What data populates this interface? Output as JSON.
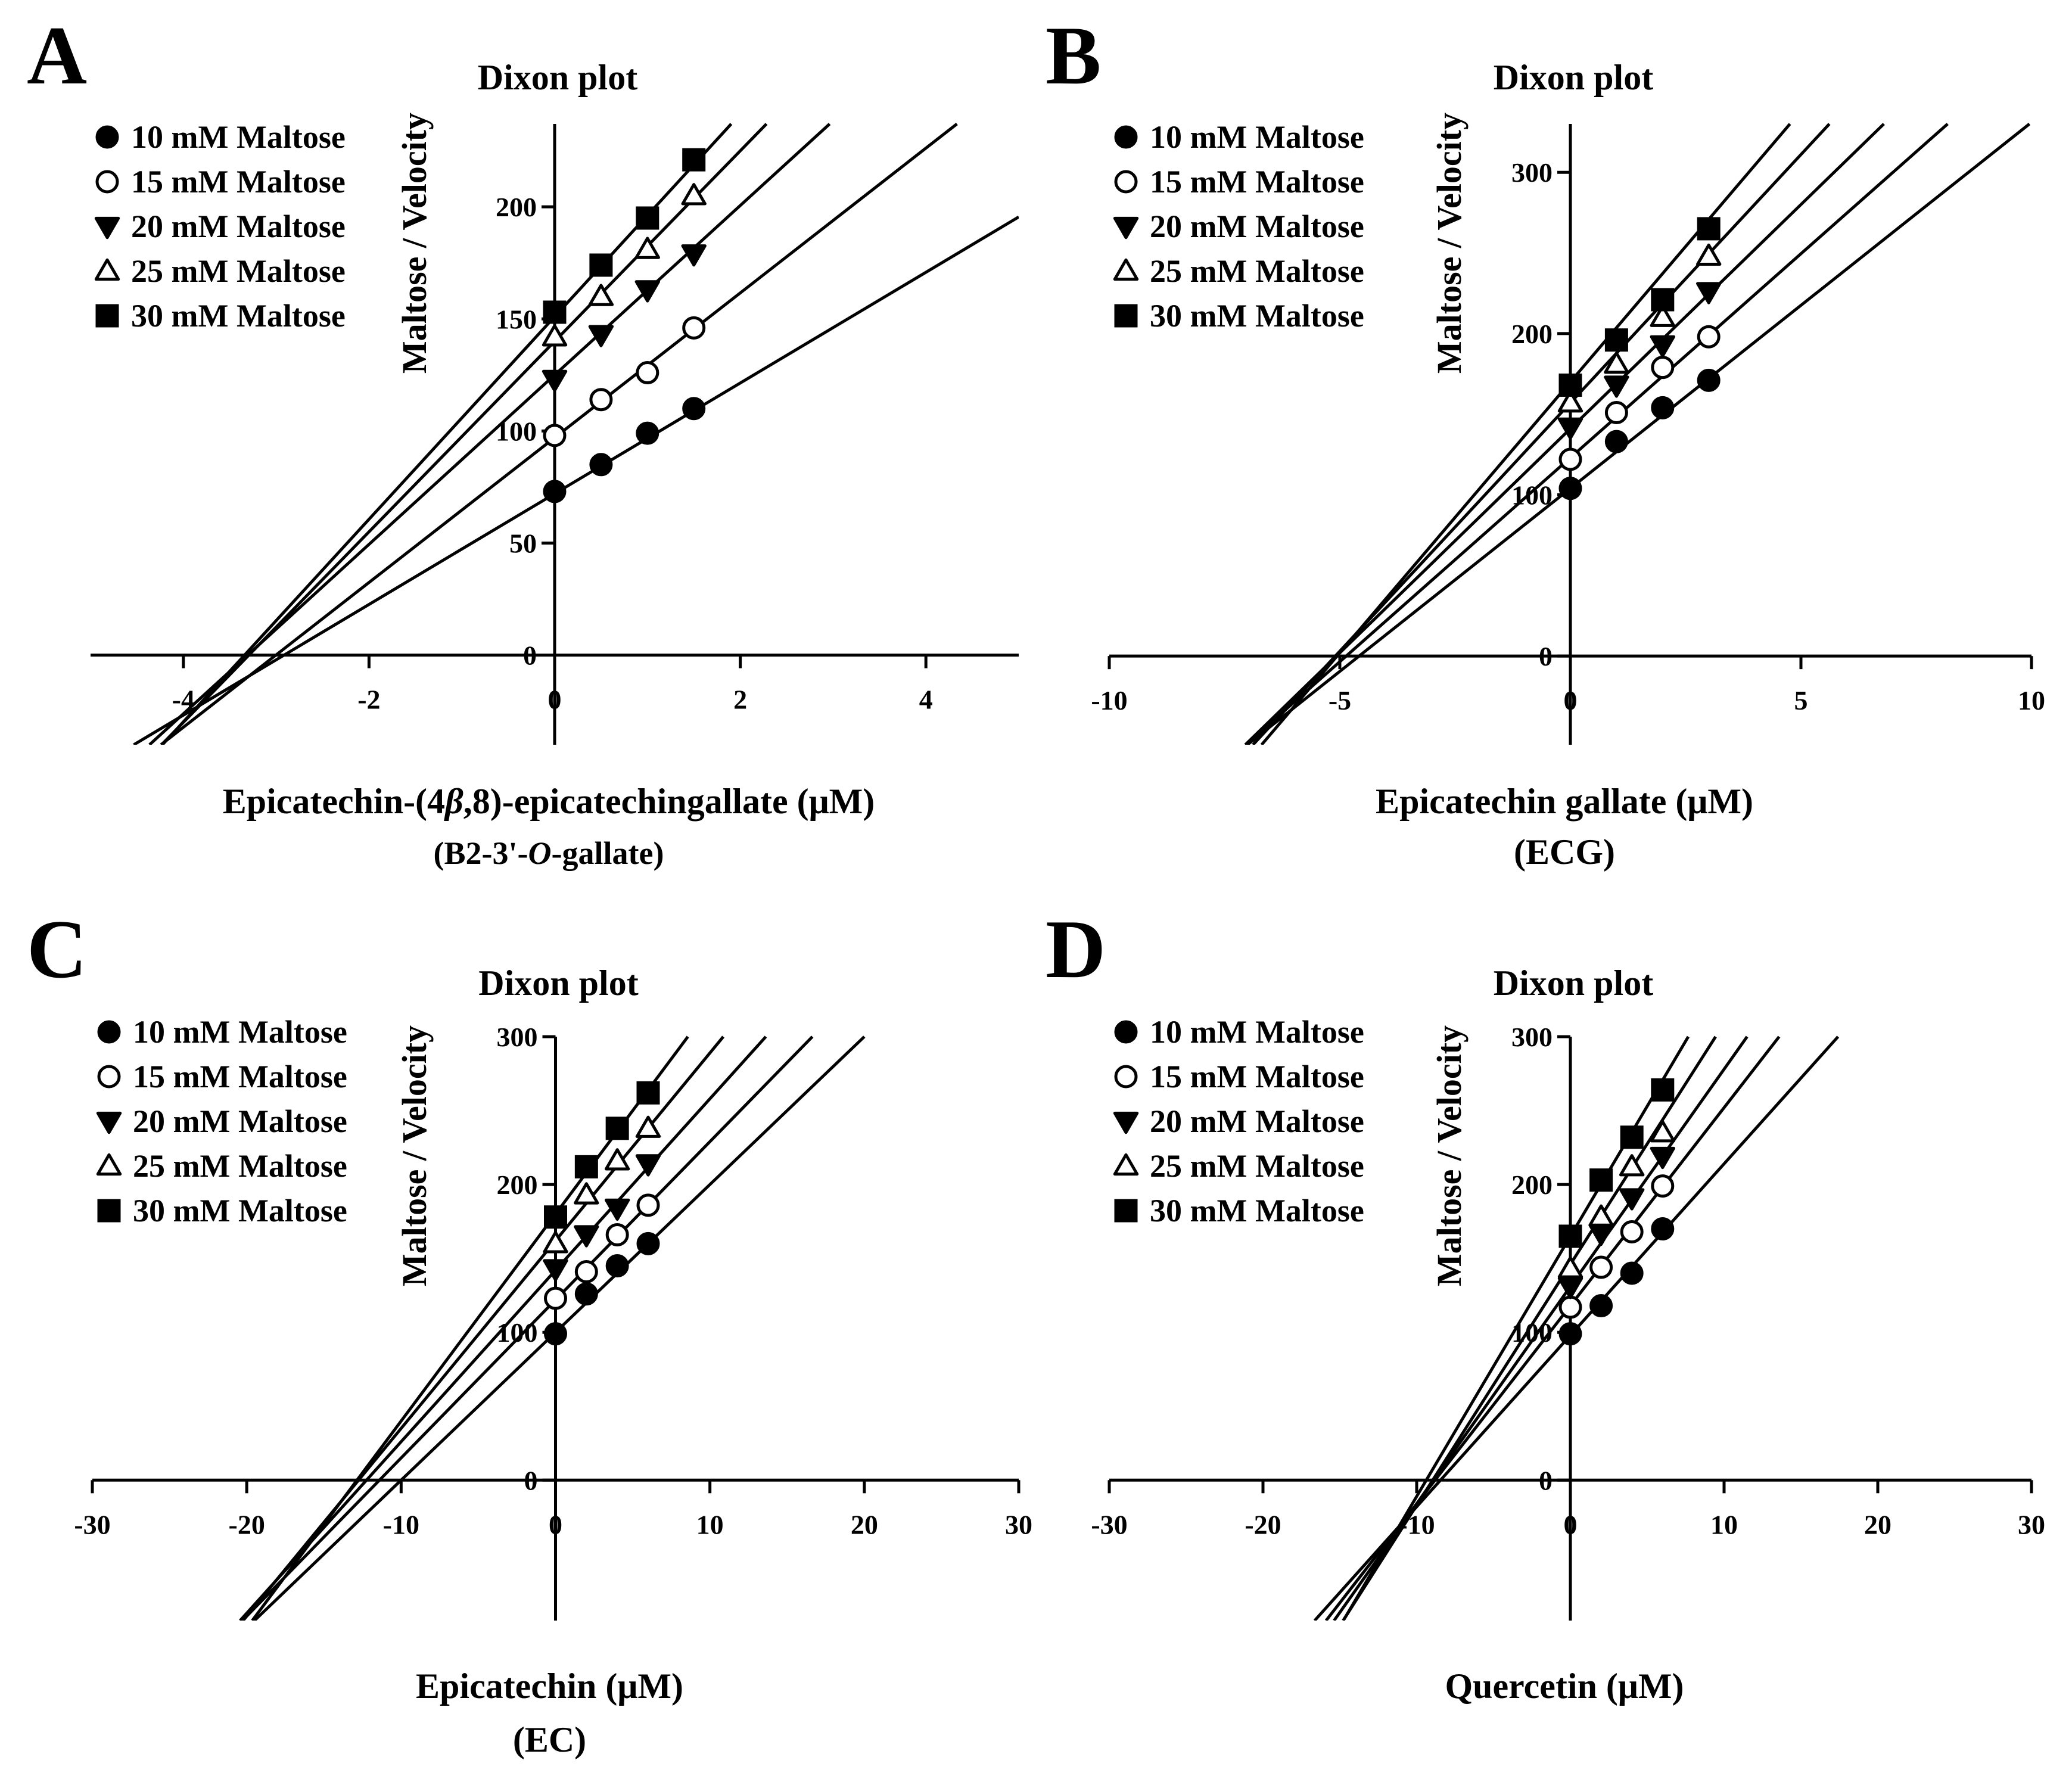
{
  "colors": {
    "line": "#000000",
    "background": "#ffffff"
  },
  "chart_data": [
    {
      "type": "line",
      "panel_label": "A",
      "title": "Dixon plot",
      "xlabel": "Epicatechin-(4β,8)-epicatechingallate (μM)",
      "xlabel_parts": [
        "Epicatechin-(4",
        "β",
        ",8)-epicatechingallate (μM)"
      ],
      "xsublabel": "(B2-3'-O-gallate)",
      "xsublabel_parts": [
        "(B2-3'-",
        "O",
        "-gallate)"
      ],
      "ylabel": "Maltose / Velocity",
      "xlim": [
        -5,
        5
      ],
      "ylim": [
        -40,
        237
      ],
      "xticks": [
        -4,
        -2,
        0,
        2,
        4
      ],
      "xtick_labels": [
        "-4",
        "-2",
        "0",
        "2",
        "4"
      ],
      "yticks": [
        0,
        50,
        100,
        150,
        200
      ],
      "ytick_labels": [
        "0",
        "50",
        "100",
        "150",
        "200"
      ],
      "legend_labels": [
        "10 mM Maltose",
        "15 mM Maltose",
        "20 mM Maltose",
        "25 mM Maltose",
        "30 mM Maltose"
      ],
      "series": [
        {
          "name": "10 mM Maltose",
          "marker": "circle-filled",
          "x": [
            0,
            0.5,
            1,
            1.5
          ],
          "y": [
            73,
            85,
            99,
            110
          ],
          "intercept": 72,
          "slope": 24.7
        },
        {
          "name": "15 mM Maltose",
          "marker": "circle-open",
          "x": [
            0,
            0.5,
            1,
            1.5
          ],
          "y": [
            98,
            114,
            126,
            146
          ],
          "intercept": 97,
          "slope": 32.3
        },
        {
          "name": "20 mM Maltose",
          "marker": "triangle-down-filled",
          "x": [
            0,
            0.5,
            1,
            1.5
          ],
          "y": [
            123,
            143,
            163,
            179
          ],
          "intercept": 125,
          "slope": 37.8
        },
        {
          "name": "25 mM Maltose",
          "marker": "triangle-up-open",
          "x": [
            0,
            0.5,
            1,
            1.5
          ],
          "y": [
            142,
            160,
            181,
            205
          ],
          "intercept": 140,
          "slope": 42.5
        },
        {
          "name": "30 mM Maltose",
          "marker": "square-filled",
          "x": [
            0,
            0.5,
            1,
            1.5
          ],
          "y": [
            153,
            174,
            195,
            221
          ],
          "intercept": 151,
          "slope": 45.2
        }
      ]
    },
    {
      "type": "line",
      "panel_label": "B",
      "title": "Dixon plot",
      "xlabel": "Epicatechin gallate (μM)",
      "xsublabel": "(ECG)",
      "ylabel": "Maltose / Velocity",
      "xlim": [
        -10,
        10
      ],
      "ylim": [
        -55,
        330
      ],
      "xticks": [
        -10,
        -5,
        0,
        5,
        10
      ],
      "xtick_labels": [
        "-10",
        "-5",
        "0",
        "5",
        "10"
      ],
      "yticks": [
        0,
        100,
        200,
        300
      ],
      "ytick_labels": [
        "0",
        "100",
        "200",
        "300"
      ],
      "legend_labels": [
        "10 mM Maltose",
        "15 mM Maltose",
        "20 mM Maltose",
        "25 mM Maltose",
        "30 mM Maltose"
      ],
      "series": [
        {
          "name": "10 mM Maltose",
          "marker": "circle-filled",
          "x": [
            0,
            1,
            2,
            3
          ],
          "y": [
            104,
            133,
            154,
            171
          ],
          "intercept": 104,
          "slope": 22.7
        },
        {
          "name": "15 mM Maltose",
          "marker": "circle-open",
          "x": [
            0,
            1,
            2,
            3
          ],
          "y": [
            122,
            151,
            179,
            198
          ],
          "intercept": 123,
          "slope": 25.3
        },
        {
          "name": "20 mM Maltose",
          "marker": "triangle-down-filled",
          "x": [
            0,
            1,
            2,
            3
          ],
          "y": [
            142,
            168,
            193,
            226
          ],
          "intercept": 141,
          "slope": 27.8
        },
        {
          "name": "25 mM Maltose",
          "marker": "triangle-up-open",
          "x": [
            0,
            1,
            2,
            3
          ],
          "y": [
            157,
            181,
            210,
            248
          ],
          "intercept": 157,
          "slope": 30.8
        },
        {
          "name": "30 mM Maltose",
          "marker": "square-filled",
          "x": [
            0,
            1,
            2,
            3
          ],
          "y": [
            168,
            196,
            221,
            265
          ],
          "intercept": 170,
          "slope": 33.6
        }
      ]
    },
    {
      "type": "line",
      "panel_label": "C",
      "title": "Dixon plot",
      "xlabel": "Epicatechin (μM)",
      "xsublabel": "(EC)",
      "ylabel": "Maltose / Velocity",
      "xlim": [
        -30,
        30
      ],
      "ylim": [
        -95,
        300
      ],
      "xticks": [
        -30,
        -20,
        -10,
        0,
        10,
        20,
        30
      ],
      "xtick_labels": [
        "-30",
        "-20",
        "-10",
        "0",
        "10",
        "20",
        "30"
      ],
      "yticks": [
        0,
        100,
        200,
        300
      ],
      "ytick_labels": [
        "0",
        "100",
        "200",
        "300"
      ],
      "legend_labels": [
        "10 mM Maltose",
        "15 mM Maltose",
        "20 mM Maltose",
        "25 mM Maltose",
        "30 mM Maltose"
      ],
      "series": [
        {
          "name": "10 mM Maltose",
          "marker": "circle-filled",
          "x": [
            0,
            2,
            4,
            6
          ],
          "y": [
            99,
            126,
            145,
            160
          ],
          "intercept": 100,
          "slope": 10.0
        },
        {
          "name": "15 mM Maltose",
          "marker": "circle-open",
          "x": [
            0,
            2,
            4,
            6
          ],
          "y": [
            123,
            141,
            166,
            186
          ],
          "intercept": 122,
          "slope": 10.7
        },
        {
          "name": "20 mM Maltose",
          "marker": "triangle-down-filled",
          "x": [
            0,
            2,
            4,
            6
          ],
          "y": [
            143,
            166,
            184,
            214
          ],
          "intercept": 142,
          "slope": 11.6
        },
        {
          "name": "25 mM Maltose",
          "marker": "triangle-up-open",
          "x": [
            0,
            2,
            4,
            6
          ],
          "y": [
            160,
            193,
            216,
            238
          ],
          "intercept": 162,
          "slope": 12.7
        },
        {
          "name": "30 mM Maltose",
          "marker": "square-filled",
          "x": [
            0,
            2,
            4,
            6
          ],
          "y": [
            178,
            212,
            238,
            262
          ],
          "intercept": 180,
          "slope": 14.0
        }
      ]
    },
    {
      "type": "line",
      "panel_label": "D",
      "title": "Dixon plot",
      "xlabel": "Quercetin (μM)",
      "xsublabel": "",
      "ylabel": "Maltose / Velocity",
      "xlim": [
        -30,
        30
      ],
      "ylim": [
        -95,
        300
      ],
      "xticks": [
        -30,
        -20,
        -10,
        0,
        10,
        20,
        30
      ],
      "xtick_labels": [
        "-30",
        "-20",
        "-10",
        "0",
        "10",
        "20",
        "30"
      ],
      "yticks": [
        0,
        100,
        200,
        300
      ],
      "ytick_labels": [
        "0",
        "100",
        "200",
        "300"
      ],
      "legend_labels": [
        "10 mM Maltose",
        "15 mM Maltose",
        "20 mM Maltose",
        "25 mM Maltose",
        "30 mM Maltose"
      ],
      "series": [
        {
          "name": "10 mM Maltose",
          "marker": "circle-filled",
          "x": [
            0,
            2,
            4,
            6
          ],
          "y": [
            99,
            118,
            140,
            170
          ],
          "intercept": 98,
          "slope": 11.6
        },
        {
          "name": "15 mM Maltose",
          "marker": "circle-open",
          "x": [
            0,
            2,
            4,
            6
          ],
          "y": [
            117,
            144,
            168,
            199
          ],
          "intercept": 118,
          "slope": 13.4
        },
        {
          "name": "20 mM Maltose",
          "marker": "triangle-down-filled",
          "x": [
            0,
            2,
            4,
            6
          ],
          "y": [
            131,
            167,
            191,
            219
          ],
          "intercept": 131,
          "slope": 14.7
        },
        {
          "name": "25 mM Maltose",
          "marker": "triangle-up-open",
          "x": [
            0,
            2,
            4,
            6
          ],
          "y": [
            143,
            178,
            212,
            235
          ],
          "intercept": 146,
          "slope": 16.3
        },
        {
          "name": "30 mM Maltose",
          "marker": "square-filled",
          "x": [
            0,
            2,
            4,
            6
          ],
          "y": [
            165,
            203,
            232,
            264
          ],
          "intercept": 165,
          "slope": 17.6
        }
      ]
    }
  ]
}
